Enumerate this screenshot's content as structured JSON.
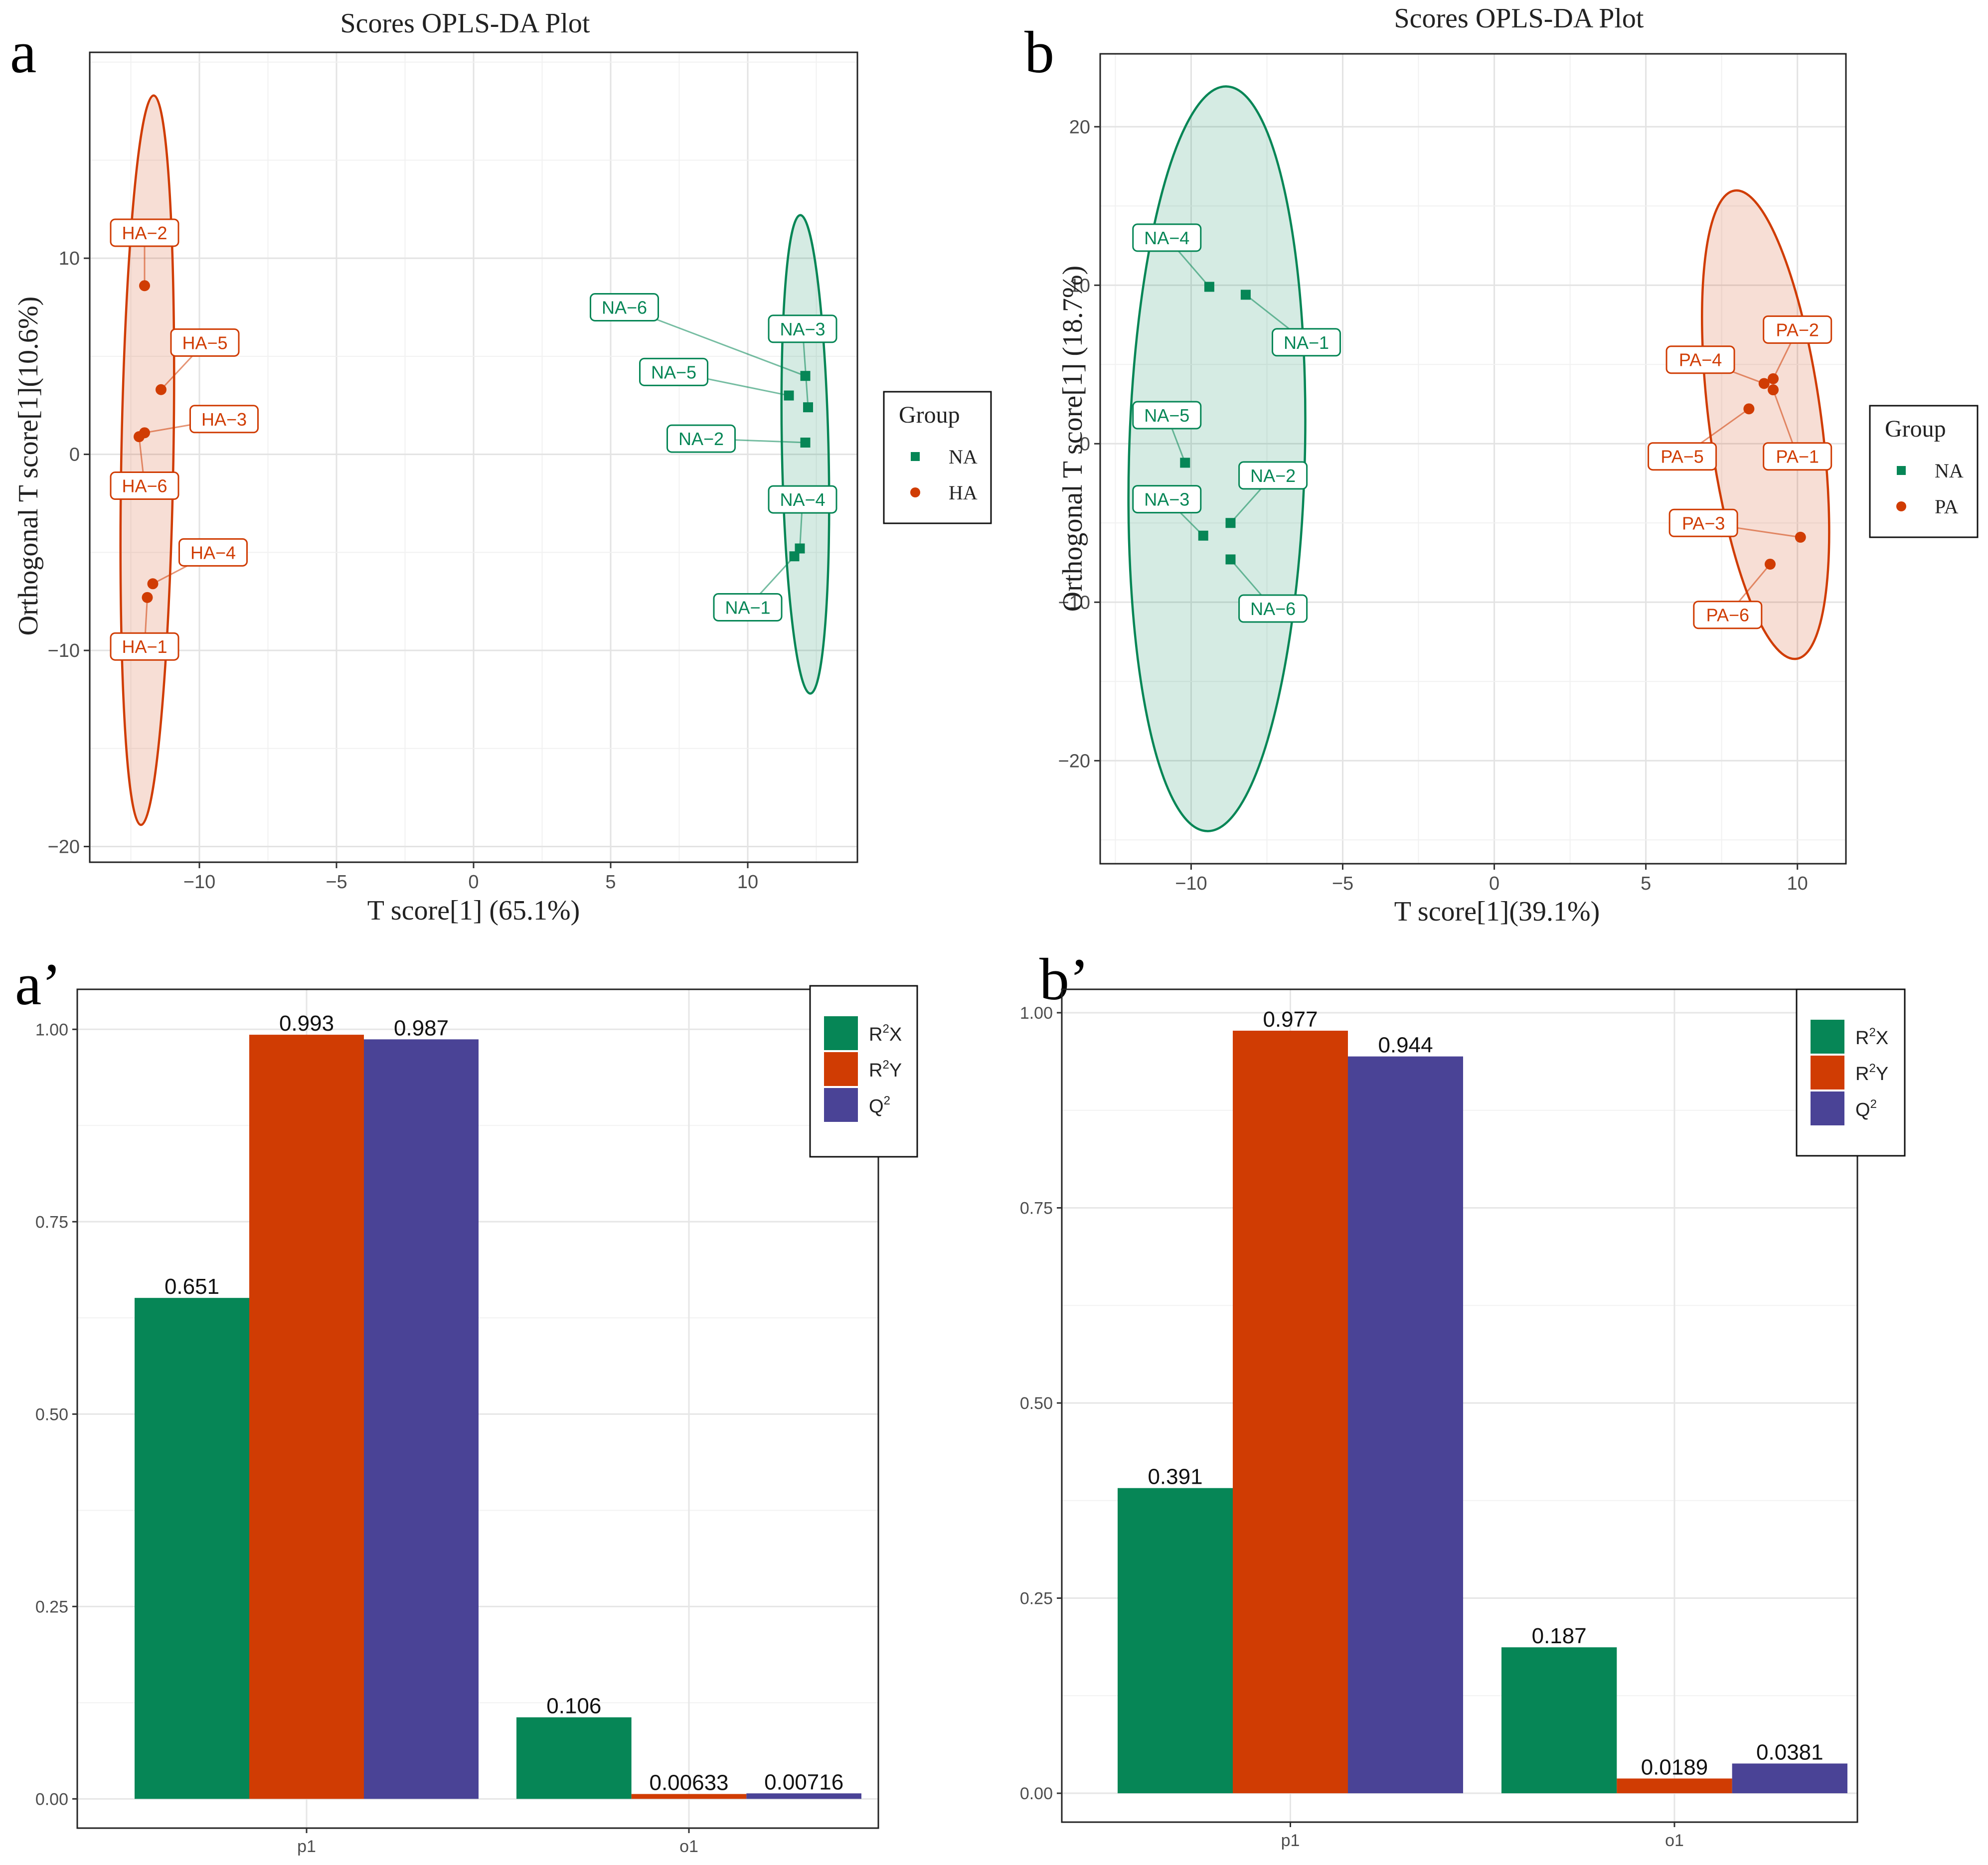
{
  "colors": {
    "green": "#068656",
    "orange": "#D03C03",
    "purple": "#4A4396",
    "panel_border": "#222222",
    "grid": "#e6e6e6"
  },
  "chart_data": [
    {
      "id": "a",
      "panel_label": "a",
      "type": "scatter",
      "title": "Scores OPLS-DA Plot",
      "xlabel": "T score[1] (65.1%)",
      "ylabel": "Orthogonal T score[1](10.6%)",
      "xlim": [
        -14,
        14
      ],
      "ylim": [
        -20.8,
        20.5
      ],
      "xticks": [
        -10,
        -5,
        0,
        5,
        10
      ],
      "xtick_labels": [
        "−10",
        "−5",
        "0",
        "5",
        "10"
      ],
      "yticks": [
        -20,
        -10,
        0,
        10
      ],
      "ytick_labels": [
        "−20",
        "−10",
        "0",
        "10"
      ],
      "legend": {
        "title": "Group",
        "position": "right",
        "entries": [
          {
            "label": "NA",
            "color": "green",
            "marker": "square"
          },
          {
            "label": "HA",
            "color": "orange",
            "marker": "circle"
          }
        ]
      },
      "series": [
        {
          "name": "NA",
          "color": "green",
          "marker": "square",
          "ellipse": {
            "center": [
              12.1,
              0
            ],
            "semi_axis_x": 0.85,
            "semi_axis_y": 12.2,
            "tilt_deg": -1.2
          },
          "points": [
            {
              "label": "NA−1",
              "x": 11.7,
              "y": -5.2,
              "label_x": 10.0,
              "label_y": -7.8
            },
            {
              "label": "NA−2",
              "x": 12.1,
              "y": 0.6,
              "label_x": 8.3,
              "label_y": 0.8
            },
            {
              "label": "NA−3",
              "x": 12.2,
              "y": 2.4,
              "label_x": 12.0,
              "label_y": 6.4
            },
            {
              "label": "NA−4",
              "x": 11.9,
              "y": -4.8,
              "label_x": 12.0,
              "label_y": -2.3
            },
            {
              "label": "NA−5",
              "x": 11.5,
              "y": 3.0,
              "label_x": 7.3,
              "label_y": 4.2
            },
            {
              "label": "NA−6",
              "x": 12.1,
              "y": 4.0,
              "label_x": 5.5,
              "label_y": 7.5
            }
          ]
        },
        {
          "name": "HA",
          "color": "orange",
          "marker": "circle",
          "ellipse": {
            "center": [
              -11.9,
              -0.3
            ],
            "semi_axis_x": 0.95,
            "semi_axis_y": 18.6,
            "tilt_deg": 1.0
          },
          "points": [
            {
              "label": "HA−1",
              "x": -11.9,
              "y": -7.3,
              "label_x": -12.0,
              "label_y": -9.8
            },
            {
              "label": "HA−2",
              "x": -12.0,
              "y": 8.6,
              "label_x": -12.0,
              "label_y": 11.3
            },
            {
              "label": "HA−3",
              "x": -12.0,
              "y": 1.1,
              "label_x": -9.1,
              "label_y": 1.8
            },
            {
              "label": "HA−4",
              "x": -11.7,
              "y": -6.6,
              "label_x": -9.5,
              "label_y": -5.0
            },
            {
              "label": "HA−5",
              "x": -11.4,
              "y": 3.3,
              "label_x": -9.8,
              "label_y": 5.7
            },
            {
              "label": "HA−6",
              "x": -12.2,
              "y": 0.9,
              "label_x": -12.0,
              "label_y": -1.6
            }
          ]
        }
      ]
    },
    {
      "id": "b",
      "panel_label": "b",
      "type": "scatter",
      "title": "Scores OPLS-DA Plot",
      "xlabel": "T score[1](39.1%)",
      "ylabel": "Orthogonal T score[1] (18.7%)",
      "xlim": [
        -13,
        11.6
      ],
      "ylim": [
        -26.5,
        24.6
      ],
      "xticks": [
        -10,
        -5,
        0,
        5,
        10
      ],
      "xtick_labels": [
        "−10",
        "−5",
        "0",
        "5",
        "10"
      ],
      "yticks": [
        -20,
        -10,
        0,
        10,
        20
      ],
      "ytick_labels": [
        "−20",
        "−10",
        "0",
        "10",
        "20"
      ],
      "legend": {
        "title": "Group",
        "position": "right",
        "entries": [
          {
            "label": "NA",
            "color": "green",
            "marker": "square"
          },
          {
            "label": "PA",
            "color": "orange",
            "marker": "circle"
          }
        ]
      },
      "series": [
        {
          "name": "NA",
          "color": "green",
          "marker": "square",
          "ellipse": {
            "center": [
              -9.15,
              -0.95
            ],
            "semi_axis_x": 2.9,
            "semi_axis_y": 23.5,
            "tilt_deg": 1.5
          },
          "points": [
            {
              "label": "NA−1",
              "x": -8.2,
              "y": 9.4,
              "label_x": -6.2,
              "label_y": 6.4
            },
            {
              "label": "NA−2",
              "x": -8.7,
              "y": -5.0,
              "label_x": -7.3,
              "label_y": -2.0
            },
            {
              "label": "NA−3",
              "x": -9.6,
              "y": -5.8,
              "label_x": -10.8,
              "label_y": -3.5
            },
            {
              "label": "NA−4",
              "x": -9.4,
              "y": 9.9,
              "label_x": -10.8,
              "label_y": 13.0
            },
            {
              "label": "NA−5",
              "x": -10.2,
              "y": -1.2,
              "label_x": -10.8,
              "label_y": 1.8
            },
            {
              "label": "NA−6",
              "x": -8.7,
              "y": -7.3,
              "label_x": -7.3,
              "label_y": -10.4
            }
          ]
        },
        {
          "name": "PA",
          "color": "orange",
          "marker": "circle",
          "ellipse": {
            "center": [
              8.95,
              1.2
            ],
            "semi_axis_x": 1.85,
            "semi_axis_y": 14.9,
            "tilt_deg": -7.5
          },
          "points": [
            {
              "label": "PA−1",
              "x": 9.2,
              "y": 3.4,
              "label_x": 10.0,
              "label_y": -0.8
            },
            {
              "label": "PA−2",
              "x": 9.2,
              "y": 4.1,
              "label_x": 10.0,
              "label_y": 7.2
            },
            {
              "label": "PA−3",
              "x": 10.1,
              "y": -5.9,
              "label_x": 6.9,
              "label_y": -5.0
            },
            {
              "label": "PA−4",
              "x": 8.9,
              "y": 3.8,
              "label_x": 6.8,
              "label_y": 5.3
            },
            {
              "label": "PA−5",
              "x": 8.4,
              "y": 2.2,
              "label_x": 6.2,
              "label_y": -0.8
            },
            {
              "label": "PA−6",
              "x": 9.1,
              "y": -7.6,
              "label_x": 7.7,
              "label_y": -10.8
            }
          ]
        }
      ]
    },
    {
      "id": "a2",
      "panel_label": "a’",
      "type": "bar",
      "title": "",
      "xlabel": "",
      "ylabel": "",
      "categories": [
        "p1",
        "o1"
      ],
      "ylim": [
        -0.038,
        1.052
      ],
      "yticks": [
        0,
        0.25,
        0.5,
        0.75,
        1.0
      ],
      "ytick_labels": [
        "0.00",
        "0.25",
        "0.50",
        "0.75",
        "1.00"
      ],
      "legend": {
        "position": "top-right",
        "entries": [
          {
            "base": "R",
            "sup": "2",
            "tail": "X",
            "color": "green"
          },
          {
            "base": "R",
            "sup": "2",
            "tail": "Y",
            "color": "orange"
          },
          {
            "base": "Q",
            "sup": "2",
            "tail": "",
            "color": "purple"
          }
        ]
      },
      "series": [
        {
          "name": "R2X",
          "color": "green",
          "values": [
            0.651,
            0.106
          ],
          "value_labels": [
            "0.651",
            "0.106"
          ]
        },
        {
          "name": "R2Y",
          "color": "orange",
          "values": [
            0.993,
            0.00633
          ],
          "value_labels": [
            "0.993",
            "0.00633"
          ]
        },
        {
          "name": "Q2",
          "color": "purple",
          "values": [
            0.987,
            0.00716
          ],
          "value_labels": [
            "0.987",
            "0.00716"
          ]
        }
      ]
    },
    {
      "id": "b2",
      "panel_label": "b’",
      "type": "bar",
      "title": "",
      "xlabel": "",
      "ylabel": "",
      "categories": [
        "p1",
        "o1"
      ],
      "ylim": [
        -0.037,
        1.03
      ],
      "yticks": [
        0,
        0.25,
        0.5,
        0.75,
        1.0
      ],
      "ytick_labels": [
        "0.00",
        "0.25",
        "0.50",
        "0.75",
        "1.00"
      ],
      "legend": {
        "position": "top-right",
        "entries": [
          {
            "base": "R",
            "sup": "2",
            "tail": "X",
            "color": "green"
          },
          {
            "base": "R",
            "sup": "2",
            "tail": "Y",
            "color": "orange"
          },
          {
            "base": "Q",
            "sup": "2",
            "tail": "",
            "color": "purple"
          }
        ]
      },
      "series": [
        {
          "name": "R2X",
          "color": "green",
          "values": [
            0.391,
            0.187
          ],
          "value_labels": [
            "0.391",
            "0.187"
          ]
        },
        {
          "name": "R2Y",
          "color": "orange",
          "values": [
            0.977,
            0.0189
          ],
          "value_labels": [
            "0.977",
            "0.0189"
          ]
        },
        {
          "name": "Q2",
          "color": "purple",
          "values": [
            0.944,
            0.0381
          ],
          "value_labels": [
            "0.944",
            "0.0381"
          ]
        }
      ]
    }
  ]
}
